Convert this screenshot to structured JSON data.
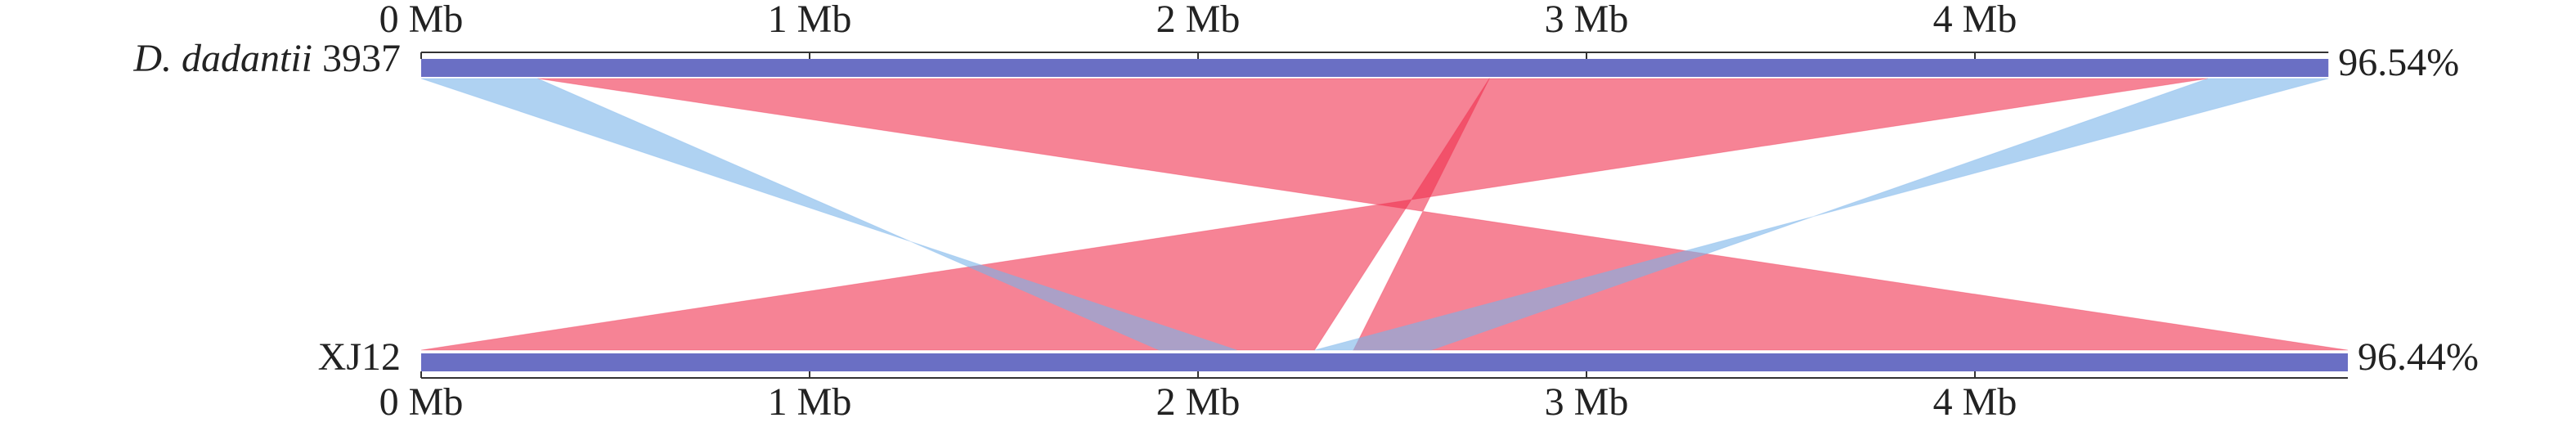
{
  "chart_data": {
    "type": "synteny",
    "genomes": [
      {
        "species": "D. dadantii",
        "strain": "3937",
        "length": 4.91,
        "identity": "96.54%",
        "color": "#6a6fc4"
      },
      {
        "strain": "XJ12",
        "length": 4.96,
        "identity": "96.44%",
        "color": "#6a6fc4"
      }
    ],
    "xticks": [
      {
        "value": 0,
        "label": "0 Mb"
      },
      {
        "value": 1,
        "label": "1 Mb"
      },
      {
        "value": 2,
        "label": "2 Mb"
      },
      {
        "value": 3,
        "label": "3 Mb"
      },
      {
        "value": 4,
        "label": "4 Mb"
      }
    ],
    "blocks": [
      {
        "top": [
          0.3,
          2.75
        ],
        "bottom": [
          4.96,
          2.4
        ],
        "color": "#f0304f"
      },
      {
        "top": [
          2.75,
          4.6
        ],
        "bottom": [
          2.3,
          0.0
        ],
        "color": "#f0304f"
      },
      {
        "top": [
          0.0,
          0.3
        ],
        "bottom": [
          2.1,
          1.9
        ],
        "color": "#7ab4ea"
      },
      {
        "top": [
          4.6,
          4.91
        ],
        "bottom": [
          2.6,
          2.3
        ],
        "color": "#7ab4ea"
      }
    ]
  }
}
